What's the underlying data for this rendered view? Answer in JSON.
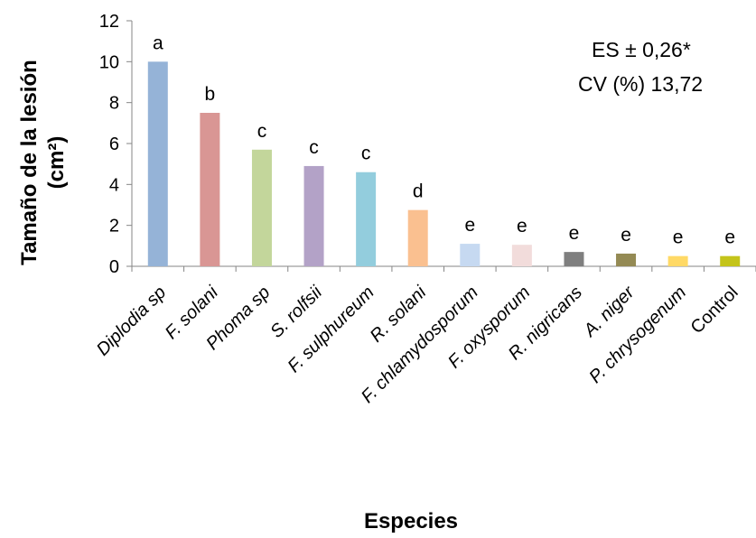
{
  "chart_data": {
    "type": "bar",
    "categories": [
      "Diplodia sp",
      "F. solani",
      "Phoma sp",
      "S. rolfsii",
      "F. sulphureum",
      "R. solani",
      "F. chlamydosporum",
      "F. oxysporum",
      "R. nigricans",
      "A. niger",
      "P. chrysogenum",
      "Control"
    ],
    "category_italic": [
      true,
      true,
      true,
      true,
      true,
      true,
      true,
      true,
      true,
      true,
      true,
      false
    ],
    "values": [
      10.0,
      7.5,
      5.7,
      4.9,
      4.6,
      2.75,
      1.1,
      1.05,
      0.7,
      0.62,
      0.5,
      0.5
    ],
    "letters": [
      "a",
      "b",
      "c",
      "c",
      "c",
      "d",
      "e",
      "e",
      "e",
      "e",
      "e",
      "e"
    ],
    "colors": [
      "#95b3d7",
      "#d99694",
      "#c3d69b",
      "#b3a2c7",
      "#93cddd",
      "#fac090",
      "#c6d9f1",
      "#f2dcdb",
      "#7f7f7f",
      "#948a54",
      "#ffd966",
      "#c4c41a"
    ],
    "ylim": [
      0,
      12
    ],
    "yticks": [
      "0",
      "2",
      "4",
      "6",
      "8",
      "10",
      "12"
    ],
    "ylabel_line1": "Tamaño de la lesión",
    "ylabel_line2": "(cm²)",
    "xlabel": "Especies",
    "annotation_line1": "ES ± 0,26*",
    "annotation_line2": "CV (%) 13,72",
    "grid": false
  }
}
